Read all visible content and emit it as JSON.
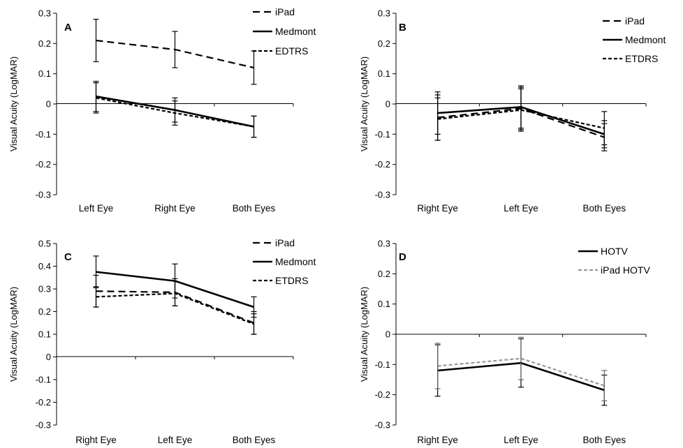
{
  "chart_data": [
    {
      "panel": "A",
      "type": "line",
      "ylabel": "Visual Acuity (LogMAR)",
      "ylim": [
        -0.3,
        0.3
      ],
      "yticks": [
        "0.3",
        "0.2",
        "0.1",
        "0",
        "-0.1",
        "-0.2",
        "-0.3"
      ],
      "categories": [
        "Left Eye",
        "Right Eye",
        "Both Eyes"
      ],
      "series": [
        {
          "name": "iPad",
          "style": "dash",
          "values": [
            0.21,
            0.18,
            0.12
          ],
          "err": [
            0.07,
            0.06,
            0.055
          ]
        },
        {
          "name": "Medmont",
          "style": "solid",
          "values": [
            0.025,
            -0.02,
            -0.075
          ],
          "err": [
            0.05,
            0.04,
            0.035
          ]
        },
        {
          "name": "EDTRS",
          "style": "dot",
          "values": [
            0.02,
            -0.03,
            -0.075
          ],
          "err": [
            0.05,
            0.04,
            0.035
          ]
        }
      ]
    },
    {
      "panel": "B",
      "type": "line",
      "ylabel": "Visual Acuity (LogMAR)",
      "ylim": [
        -0.3,
        0.3
      ],
      "yticks": [
        "0.3",
        "0.2",
        "0.1",
        "0",
        "-0.1",
        "-0.2",
        "-0.3"
      ],
      "categories": [
        "Right Eye",
        "Left Eye",
        "Both Eyes"
      ],
      "series": [
        {
          "name": "iPad",
          "style": "dash",
          "values": [
            -0.045,
            -0.015,
            -0.11
          ],
          "err": [
            0.075,
            0.07,
            0.045
          ]
        },
        {
          "name": "Medmont",
          "style": "solid",
          "values": [
            -0.03,
            -0.01,
            -0.1
          ],
          "err": [
            0.07,
            0.07,
            0.045
          ]
        },
        {
          "name": "ETDRS",
          "style": "dot",
          "values": [
            -0.05,
            -0.02,
            -0.08
          ],
          "err": [
            0.07,
            0.07,
            0.055
          ]
        }
      ]
    },
    {
      "panel": "C",
      "type": "line",
      "ylabel": "Visual Acuity (LogMAR)",
      "ylim": [
        -0.3,
        0.5
      ],
      "yticks": [
        "0.5",
        "0.4",
        "0.3",
        "0.2",
        "0.1",
        "0",
        "-0.1",
        "-0.2",
        "-0.3"
      ],
      "categories": [
        "Right Eye",
        "Left Eye",
        "Both Eyes"
      ],
      "series": [
        {
          "name": "iPad",
          "style": "dash",
          "values": [
            0.29,
            0.285,
            0.15
          ],
          "err": [
            0.07,
            0.06,
            0.05
          ]
        },
        {
          "name": "Medmont",
          "style": "solid",
          "values": [
            0.375,
            0.335,
            0.22
          ],
          "err": [
            0.07,
            0.075,
            0.045
          ]
        },
        {
          "name": "ETDRS",
          "style": "dot",
          "values": [
            0.265,
            0.28,
            0.145
          ],
          "err": [
            0.045,
            0.055,
            0.045
          ]
        }
      ]
    },
    {
      "panel": "D",
      "type": "line",
      "ylabel": "Visual Acuity (LogMAR)",
      "ylim": [
        -0.3,
        0.3
      ],
      "yticks": [
        "0.3",
        "0.2",
        "0.1",
        "0",
        "-0.1",
        "-0.2",
        "-0.3"
      ],
      "categories": [
        "Right Eye",
        "Left Eye",
        "Both Eyes"
      ],
      "series": [
        {
          "name": "HOTV",
          "style": "solid",
          "color": "#000000",
          "values": [
            -0.12,
            -0.095,
            -0.185
          ],
          "err": [
            0.085,
            0.08,
            0.05
          ]
        },
        {
          "name": "iPad HOTV",
          "style": "gray-dash",
          "color": "#999999",
          "values": [
            -0.105,
            -0.08,
            -0.17
          ],
          "err": [
            0.075,
            0.07,
            0.05
          ]
        }
      ]
    }
  ]
}
